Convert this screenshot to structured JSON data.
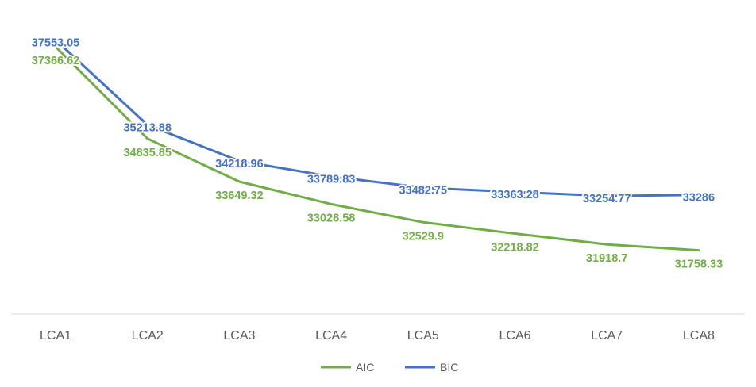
{
  "chart_data": {
    "type": "line",
    "title": "",
    "xlabel": "",
    "ylabel": "",
    "categories": [
      "LCA1",
      "LCA2",
      "LCA3",
      "LCA4",
      "LCA5",
      "LCA6",
      "LCA7",
      "LCA8"
    ],
    "ylim": [
      30000,
      38000
    ],
    "grid": false,
    "legend": "bottom",
    "series": [
      {
        "name": "AIC",
        "color": "#70AD47",
        "values": [
          37366.62,
          34835.85,
          33649.32,
          33028.58,
          32529.9,
          32218.82,
          31918.7,
          31758.33
        ],
        "labels": [
          "37366.62",
          "34835.85",
          "33649.32",
          "33028.58",
          "32529.9",
          "32218.82",
          "31918.7",
          "31758.33"
        ]
      },
      {
        "name": "BIC",
        "color": "#4472C4",
        "values": [
          37553.05,
          35213.88,
          34218.96,
          33789.83,
          33482.75,
          33363.28,
          33254.77,
          33286
        ],
        "labels": [
          "37553.05",
          "35213.88",
          "34218.96",
          "33789.83",
          "33482.75",
          "33363.28",
          "33254.77",
          "33286"
        ]
      }
    ]
  }
}
